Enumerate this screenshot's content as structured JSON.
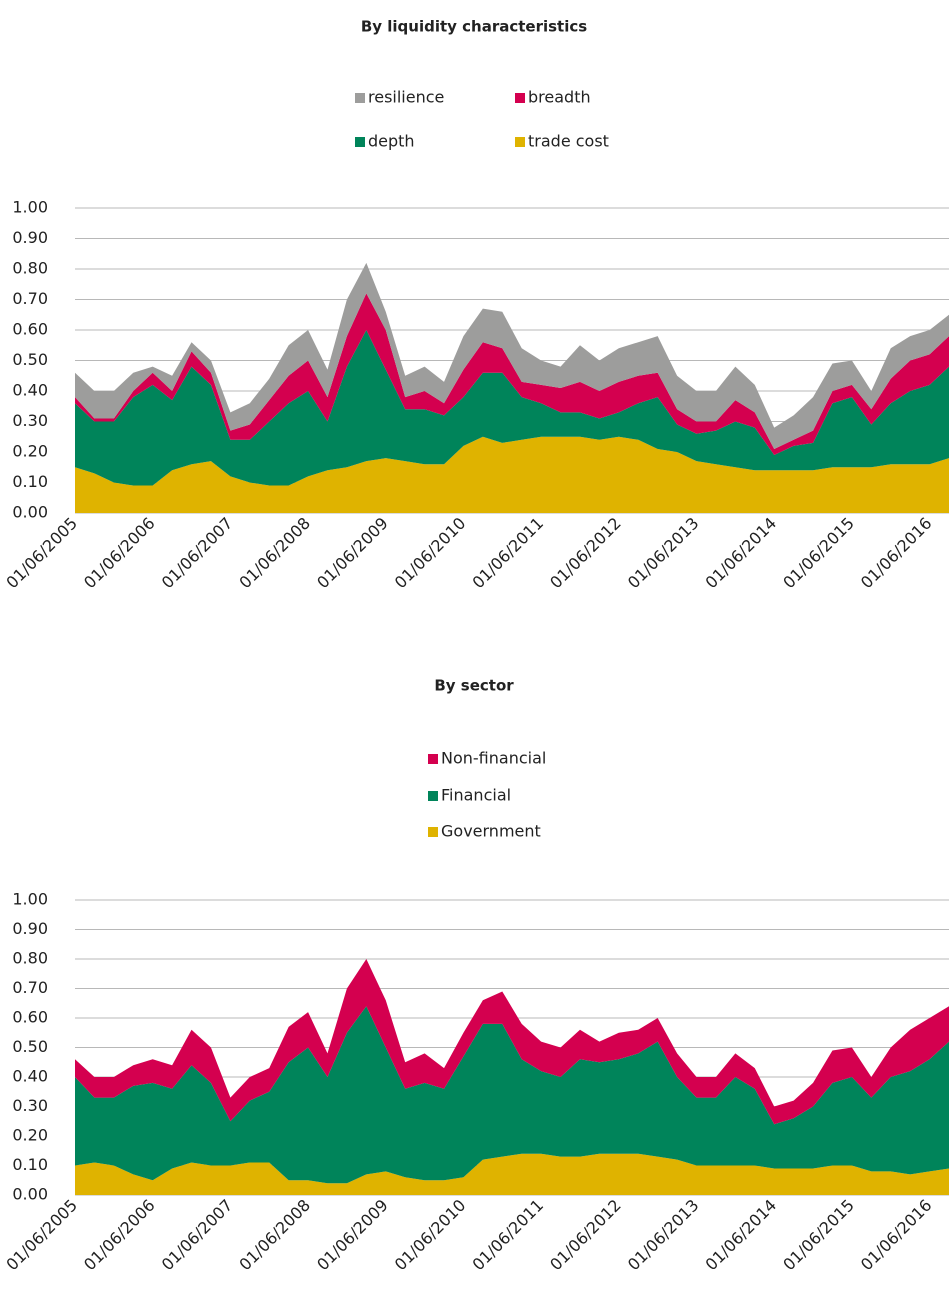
{
  "chart_data": [
    {
      "type": "stacked_area",
      "title": "By liquidity characteristics",
      "categories": [
        "01/06/2005",
        null,
        null,
        null,
        "01/06/2006",
        null,
        null,
        null,
        "01/06/2007",
        null,
        null,
        null,
        "01/06/2008",
        null,
        null,
        null,
        "01/06/2009",
        null,
        null,
        null,
        "01/06/2010",
        null,
        null,
        null,
        "01/06/2011",
        null,
        null,
        null,
        "01/06/2012",
        null,
        null,
        null,
        "01/06/2013",
        null,
        null,
        null,
        "01/06/2014",
        null,
        null,
        null,
        "01/06/2015",
        null,
        null,
        null,
        "01/06/2016",
        null
      ],
      "ylim": [
        0,
        1
      ],
      "yticks": [
        {
          "value": 0,
          "label": "0.00"
        },
        {
          "value": 0.1,
          "label": "0.10"
        },
        {
          "value": 0.2,
          "label": "0.20"
        },
        {
          "value": 0.3,
          "label": "0.30"
        },
        {
          "value": 0.4,
          "label": "0.40"
        },
        {
          "value": 0.5,
          "label": "0.50"
        },
        {
          "value": 0.6,
          "label": "0.60"
        },
        {
          "value": 0.7,
          "label": "0.70"
        },
        {
          "value": 0.8,
          "label": "0.80"
        },
        {
          "value": 0.9,
          "label": "0.90"
        },
        {
          "value": 1,
          "label": "1.00"
        }
      ],
      "grid": true,
      "series": [
        {
          "name": "trade cost",
          "color": "#dfb300",
          "values": [
            0.15,
            0.13,
            0.1,
            0.09,
            0.09,
            0.14,
            0.16,
            0.17,
            0.12,
            0.1,
            0.09,
            0.09,
            0.12,
            0.14,
            0.15,
            0.17,
            0.18,
            0.17,
            0.16,
            0.16,
            0.22,
            0.25,
            0.23,
            0.24,
            0.25,
            0.25,
            0.25,
            0.24,
            0.25,
            0.24,
            0.21,
            0.2,
            0.17,
            0.16,
            0.15,
            0.14,
            0.14,
            0.14,
            0.14,
            0.15,
            0.15,
            0.15,
            0.16,
            0.16,
            0.16,
            0.18
          ]
        },
        {
          "name": "depth",
          "color": "#00845a",
          "values": [
            0.21,
            0.17,
            0.2,
            0.29,
            0.33,
            0.23,
            0.32,
            0.25,
            0.12,
            0.14,
            0.21,
            0.27,
            0.28,
            0.16,
            0.33,
            0.43,
            0.29,
            0.17,
            0.18,
            0.16,
            0.16,
            0.21,
            0.23,
            0.14,
            0.11,
            0.08,
            0.08,
            0.07,
            0.08,
            0.12,
            0.17,
            0.09,
            0.09,
            0.11,
            0.15,
            0.14,
            0.05,
            0.08,
            0.09,
            0.21,
            0.23,
            0.14,
            0.2,
            0.24,
            0.26,
            0.3
          ]
        },
        {
          "name": "breadth",
          "color": "#d4004f",
          "values": [
            0.02,
            0.01,
            0.01,
            0.02,
            0.04,
            0.03,
            0.05,
            0.04,
            0.03,
            0.05,
            0.07,
            0.09,
            0.1,
            0.08,
            0.1,
            0.12,
            0.13,
            0.04,
            0.06,
            0.04,
            0.09,
            0.1,
            0.08,
            0.05,
            0.06,
            0.08,
            0.1,
            0.09,
            0.1,
            0.09,
            0.08,
            0.05,
            0.04,
            0.03,
            0.07,
            0.05,
            0.02,
            0.02,
            0.04,
            0.04,
            0.04,
            0.05,
            0.08,
            0.1,
            0.1,
            0.1
          ]
        },
        {
          "name": "resilience",
          "color": "#9d9d9c",
          "values": [
            0.08,
            0.09,
            0.09,
            0.06,
            0.02,
            0.05,
            0.03,
            0.04,
            0.06,
            0.07,
            0.07,
            0.1,
            0.1,
            0.09,
            0.12,
            0.1,
            0.06,
            0.07,
            0.08,
            0.07,
            0.11,
            0.11,
            0.12,
            0.11,
            0.08,
            0.07,
            0.12,
            0.1,
            0.11,
            0.11,
            0.12,
            0.11,
            0.1,
            0.1,
            0.11,
            0.09,
            0.07,
            0.08,
            0.11,
            0.09,
            0.08,
            0.06,
            0.1,
            0.08,
            0.08,
            0.07
          ]
        }
      ]
    },
    {
      "type": "stacked_area",
      "title": "By sector",
      "categories": [
        "01/06/2005",
        null,
        null,
        null,
        "01/06/2006",
        null,
        null,
        null,
        "01/06/2007",
        null,
        null,
        null,
        "01/06/2008",
        null,
        null,
        null,
        "01/06/2009",
        null,
        null,
        null,
        "01/06/2010",
        null,
        null,
        null,
        "01/06/2011",
        null,
        null,
        null,
        "01/06/2012",
        null,
        null,
        null,
        "01/06/2013",
        null,
        null,
        null,
        "01/06/2014",
        null,
        null,
        null,
        "01/06/2015",
        null,
        null,
        null,
        "01/06/2016",
        null
      ],
      "ylim": [
        0,
        1
      ],
      "yticks": [
        {
          "value": 0,
          "label": "0.00"
        },
        {
          "value": 0.1,
          "label": "0.10"
        },
        {
          "value": 0.2,
          "label": "0.20"
        },
        {
          "value": 0.3,
          "label": "0.30"
        },
        {
          "value": 0.4,
          "label": "0.40"
        },
        {
          "value": 0.5,
          "label": "0.50"
        },
        {
          "value": 0.6,
          "label": "0.60"
        },
        {
          "value": 0.7,
          "label": "0.70"
        },
        {
          "value": 0.8,
          "label": "0.80"
        },
        {
          "value": 0.9,
          "label": "0.90"
        },
        {
          "value": 1,
          "label": "1.00"
        }
      ],
      "grid": true,
      "series": [
        {
          "name": "Government",
          "color": "#dfb300",
          "values": [
            0.1,
            0.11,
            0.1,
            0.07,
            0.05,
            0.09,
            0.11,
            0.1,
            0.1,
            0.11,
            0.11,
            0.05,
            0.05,
            0.04,
            0.04,
            0.07,
            0.08,
            0.06,
            0.05,
            0.05,
            0.06,
            0.12,
            0.13,
            0.14,
            0.14,
            0.13,
            0.13,
            0.14,
            0.14,
            0.14,
            0.13,
            0.12,
            0.1,
            0.1,
            0.1,
            0.1,
            0.09,
            0.09,
            0.09,
            0.1,
            0.1,
            0.08,
            0.08,
            0.07,
            0.08,
            0.09
          ]
        },
        {
          "name": "Financial",
          "color": "#00845a",
          "values": [
            0.3,
            0.22,
            0.23,
            0.3,
            0.33,
            0.27,
            0.33,
            0.28,
            0.15,
            0.21,
            0.24,
            0.4,
            0.45,
            0.36,
            0.51,
            0.57,
            0.42,
            0.3,
            0.33,
            0.31,
            0.41,
            0.46,
            0.45,
            0.32,
            0.28,
            0.27,
            0.33,
            0.31,
            0.32,
            0.34,
            0.39,
            0.28,
            0.23,
            0.23,
            0.3,
            0.26,
            0.15,
            0.17,
            0.21,
            0.28,
            0.3,
            0.25,
            0.32,
            0.35,
            0.38,
            0.43
          ]
        },
        {
          "name": "Non-financial",
          "color": "#d4004f",
          "values": [
            0.06,
            0.07,
            0.07,
            0.07,
            0.08,
            0.08,
            0.12,
            0.12,
            0.08,
            0.08,
            0.08,
            0.12,
            0.12,
            0.08,
            0.15,
            0.16,
            0.16,
            0.09,
            0.1,
            0.07,
            0.08,
            0.08,
            0.11,
            0.12,
            0.1,
            0.1,
            0.1,
            0.07,
            0.09,
            0.08,
            0.08,
            0.08,
            0.07,
            0.07,
            0.08,
            0.07,
            0.06,
            0.06,
            0.08,
            0.11,
            0.1,
            0.07,
            0.1,
            0.14,
            0.14,
            0.12
          ]
        }
      ]
    }
  ]
}
